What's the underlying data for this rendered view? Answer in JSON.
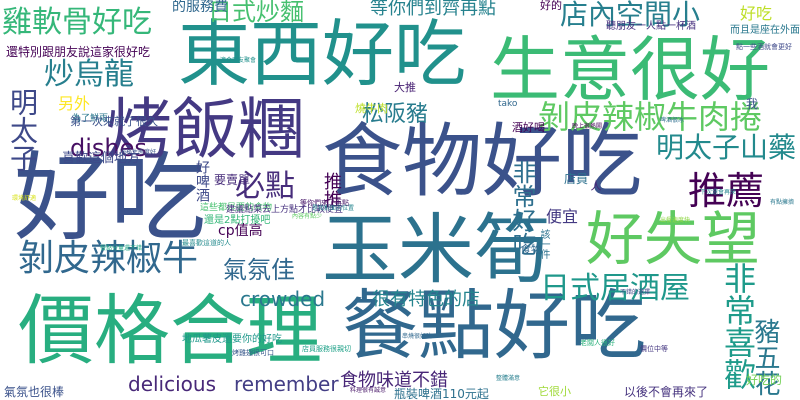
{
  "words": [
    {
      "key": "haochi",
      "text": "好吃",
      "color": "#3b528b"
    },
    {
      "key": "dongxi",
      "text": "東西好吃",
      "color": "#21918c"
    },
    {
      "key": "shengyi",
      "text": "生意很好",
      "color": "#3bbb75"
    },
    {
      "key": "shiwu",
      "text": "食物好吃",
      "color": "#3b528b"
    },
    {
      "key": "kaofan",
      "text": "烤飯糰",
      "color": "#443983"
    },
    {
      "key": "jiage",
      "text": "價格合理",
      "color": "#28ae80"
    },
    {
      "key": "candian",
      "text": "餐點好吃",
      "color": "#31688e"
    },
    {
      "key": "yumisun",
      "text": "玉米筍",
      "color": "#2c728e"
    },
    {
      "key": "haoshiwang",
      "text": "好失望",
      "color": "#5ec962"
    },
    {
      "key": "tuijian",
      "text": "推薦",
      "color": "#440154"
    },
    {
      "key": "bopi_niurou",
      "text": "剝皮辣椒牛肉捲",
      "color": "#5ec962"
    },
    {
      "key": "bopi_niu",
      "text": "剝皮辣椒牛",
      "color": "#31688e"
    },
    {
      "key": "jiruangu",
      "text": "雞軟骨好吃",
      "color": "#35b779"
    },
    {
      "key": "chaowulong",
      "text": "炒烏龍",
      "color": "#277f8e"
    },
    {
      "key": "rishi_chaomian",
      "text": "日式炒麵",
      "color": "#46c06f"
    },
    {
      "key": "diannei",
      "text": "店內空間小",
      "color": "#277f8e"
    },
    {
      "key": "songban",
      "text": "松阪豬",
      "color": "#287c8e"
    },
    {
      "key": "mingtaizi_shanyao",
      "text": "明太子山藥",
      "color": "#238a8d"
    },
    {
      "key": "mingtaizi",
      "text": "明太子",
      "color": "#3e4989"
    },
    {
      "key": "bidian",
      "text": "必點",
      "color": "#472d7b"
    },
    {
      "key": "rishi_jiuwu",
      "text": "日式居酒屋",
      "color": "#1f988b"
    },
    {
      "key": "feichang_haochi",
      "text": "非常好吃",
      "color": "#2e6f8e"
    },
    {
      "key": "feichang_xihuan",
      "text": "非常喜歡",
      "color": "#1e9b8a"
    },
    {
      "key": "zhuwuhua",
      "text": "豬五花",
      "color": "#2a788e"
    },
    {
      "key": "qifen",
      "text": "氣氛佳",
      "color": "#31688e"
    },
    {
      "key": "crowded",
      "text": "crowded",
      "color": "#2a788e"
    },
    {
      "key": "dishes",
      "text": "dishes",
      "color": "#471063"
    },
    {
      "key": "delicious",
      "text": "delicious",
      "color": "#482878"
    },
    {
      "key": "remember",
      "text": "remember",
      "color": "#433e85"
    },
    {
      "key": "henyou",
      "text": "很有特色的店",
      "color": "#25848e"
    },
    {
      "key": "shiwu_budui",
      "text": "食物味道不錯",
      "color": "#482677"
    },
    {
      "key": "dengni",
      "text": "等你們到齊再點",
      "color": "#26828e"
    },
    {
      "key": "fuwufei",
      "text": "的服務費",
      "color": "#31688e"
    },
    {
      "key": "haochi_sm",
      "text": "好吃",
      "color": "#bddf26"
    },
    {
      "key": "lingwai",
      "text": "另外",
      "color": "#fde725"
    },
    {
      "key": "haopijiu",
      "text": "好啤酒",
      "color": "#3e4989"
    },
    {
      "key": "zhishi",
      "text": "推推",
      "color": "#440154"
    },
    {
      "key": "bianyi",
      "text": "便宜",
      "color": "#443a83"
    },
    {
      "key": "cp",
      "text": "cp值高",
      "color": "#440154"
    },
    {
      "key": "shiwu_s",
      "text": "食物",
      "color": "#31688e"
    },
    {
      "key": "xihuan_difang",
      "text": "喜歡這個地方",
      "color": "#3e4989"
    },
    {
      "key": "weile",
      "text": "為了鮮兩",
      "color": "#2a788e"
    },
    {
      "key": "yaoguidan",
      "text": "要賣單",
      "color": "#472c7a"
    },
    {
      "key": "dianyuan",
      "text": "店員",
      "color": "#2d708e"
    },
    {
      "key": "pingzhuang",
      "text": "瓶裝啤酒110元起",
      "color": "#2d718e"
    },
    {
      "key": "yihou",
      "text": "以後不會再來了",
      "color": "#46337f"
    },
    {
      "key": "qifen_henbang",
      "text": "氣氛也很棒",
      "color": "#3b528b"
    },
    {
      "key": "jiuhaohe",
      "text": "酒好喝",
      "color": "#440154"
    },
    {
      "key": "shaoniurou",
      "text": "燒牛肉",
      "color": "#bddf26"
    },
    {
      "key": "dituijian",
      "text": "大推",
      "color": "#482173"
    },
    {
      "key": "haode",
      "text": "好的",
      "color": "#440154"
    },
    {
      "key": "rendian",
      "text": "人",
      "color": "#482475"
    },
    {
      "key": "wo",
      "text": "我",
      "color": "#3b528b"
    },
    {
      "key": "ta",
      "text": "它很小",
      "color": "#a0da39"
    },
    {
      "key": "haoqi",
      "text": "好吃的",
      "color": "#73d056"
    },
    {
      "key": "tako",
      "text": "tako",
      "color": "#31688e"
    },
    {
      "key": "gaiyijian",
      "text": "該一件",
      "color": "#2c728e"
    },
    {
      "key": "s1",
      "text": "還特別跟朋友說這家很好吃",
      "color": "#440154"
    },
    {
      "key": "s2",
      "text": "第一次來就了很久",
      "color": "#3b528b"
    },
    {
      "key": "s3",
      "text": "聽朋友一人點一杯酒",
      "color": "#46307e"
    },
    {
      "key": "s4",
      "text": "而且是座在外面",
      "color": "#2a788e"
    },
    {
      "key": "s5",
      "text": "點一些酒就會更好",
      "color": "#3e4989"
    },
    {
      "key": "s6",
      "text": "這些都是要的食物",
      "color": "#46c06f"
    },
    {
      "key": "s7",
      "text": "地瓜薯皮還要你的好吃",
      "color": "#1f988b"
    },
    {
      "key": "s8",
      "text": "還是2點打擾吧",
      "color": "#35b779"
    },
    {
      "key": "s9",
      "text": "建議點菜去上方點才比較便宜",
      "color": "#46307e"
    },
    {
      "key": "s10",
      "text": "等你們來了再點",
      "color": "#481769"
    },
    {
      "key": "s11",
      "text": "最喜歡這道的人",
      "color": "#238a8d"
    },
    {
      "key": "s12",
      "text": "是我對面的位置",
      "color": "#25858e"
    },
    {
      "key": "s13",
      "text": "餐點分量還不錯",
      "color": "#22a785"
    },
    {
      "key": "s14",
      "text": "烤雞翅很可口",
      "color": "#38588c"
    },
    {
      "key": "s15",
      "text": "店員服務很親切",
      "color": "#1fa188"
    },
    {
      "key": "s16",
      "text": "料理很有誠意",
      "color": "#481668"
    },
    {
      "key": "s17",
      "text": "老闆人很好",
      "color": "#2db27d"
    },
    {
      "key": "s18",
      "text": "價位中等",
      "color": "#453781"
    },
    {
      "key": "s19",
      "text": "不錯的選擇",
      "color": "#3f4788"
    },
    {
      "key": "s20",
      "text": "下次還會再來",
      "color": "#25858e"
    },
    {
      "key": "s21",
      "text": "啤酒很冰",
      "color": "#2e6e8e"
    },
    {
      "key": "s22",
      "text": "環境舒適",
      "color": "#d8e219"
    },
    {
      "key": "s23",
      "text": "晚上很熱鬧",
      "color": "#440154"
    },
    {
      "key": "s24",
      "text": "服務生態度好",
      "color": "#3b528b"
    },
    {
      "key": "s25",
      "text": "適合朋友聚會",
      "color": "#21918c"
    },
    {
      "key": "s26",
      "text": "內容有點少",
      "color": "#5ec962"
    },
    {
      "key": "s27",
      "text": "串燒很好吃",
      "color": "#31688e"
    },
    {
      "key": "s28",
      "text": "整體滿意",
      "color": "#277f8e"
    },
    {
      "key": "s29",
      "text": "出餐速度快",
      "color": "#8fd744"
    },
    {
      "key": "s30",
      "text": "有點擁擠",
      "color": "#2a788e"
    }
  ]
}
